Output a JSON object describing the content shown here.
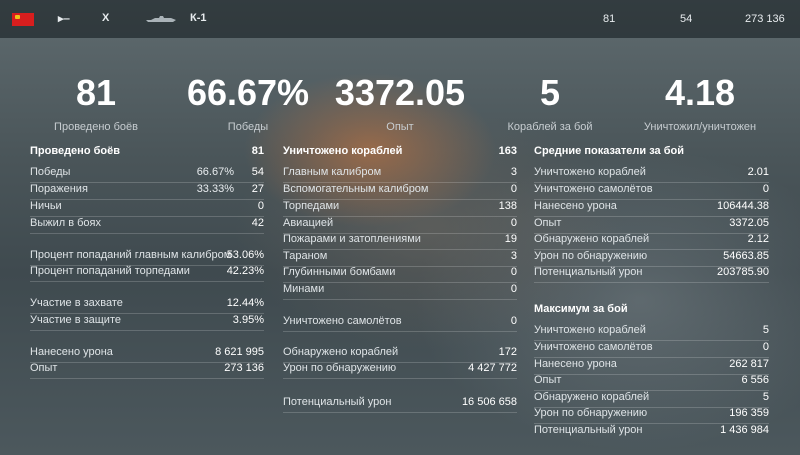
{
  "header": {
    "tier": "X",
    "ship_name": "К-1",
    "battles": "81",
    "wins": "54",
    "experience": "273 136",
    "flag_color": "#d81e1e",
    "class_icon": "submarine-class-icon"
  },
  "summary": [
    {
      "value": "81",
      "label": "Проведено боёв"
    },
    {
      "value": "66.67%",
      "label": "Победы"
    },
    {
      "value": "3372.05",
      "label": "Опыт"
    },
    {
      "value": "5",
      "label": "Кораблей за бой"
    },
    {
      "value": "4.18",
      "label": "Уничтожил/уничтожен"
    }
  ],
  "left": {
    "header": {
      "label": "Проведено боёв",
      "value": "81"
    },
    "wins": {
      "label": "Победы",
      "pct": "66.67%",
      "value": "54"
    },
    "losses": {
      "label": "Поражения",
      "pct": "33.33%",
      "value": "27"
    },
    "draws": {
      "label": "Ничьи",
      "value": "0"
    },
    "survived": {
      "label": "Выжил в боях",
      "value": "42"
    },
    "main_hit": {
      "label": "Процент попаданий главным калибром",
      "value": "53.06%"
    },
    "torp_hit": {
      "label": "Процент попаданий торпедами",
      "value": "42.23%"
    },
    "capture": {
      "label": "Участие в захвате",
      "value": "12.44%"
    },
    "defense": {
      "label": "Участие в защите",
      "value": "3.95%"
    },
    "damage": {
      "label": "Нанесено урона",
      "value": "8 621 995"
    },
    "exp": {
      "label": "Опыт",
      "value": "273 136"
    }
  },
  "middle": {
    "header": {
      "label": "Уничтожено кораблей",
      "value": "163"
    },
    "main": {
      "label": "Главным калибром",
      "value": "3"
    },
    "secondary": {
      "label": "Вспомогательным калибром",
      "value": "0"
    },
    "torpedoes": {
      "label": "Торпедами",
      "value": "138"
    },
    "aircraft": {
      "label": "Авиацией",
      "value": "0"
    },
    "fires": {
      "label": "Пожарами и затоплениями",
      "value": "19"
    },
    "ram": {
      "label": "Тараном",
      "value": "3"
    },
    "depth": {
      "label": "Глубинными бомбами",
      "value": "0"
    },
    "mines": {
      "label": "Минами",
      "value": "0"
    },
    "planes": {
      "label": "Уничтожено самолётов",
      "value": "0"
    },
    "spotted": {
      "label": "Обнаружено кораблей",
      "value": "172"
    },
    "spot_dmg": {
      "label": "Урон по обнаружению",
      "value": "4 427 772"
    },
    "potential": {
      "label": "Потенциальный урон",
      "value": "16 506 658"
    }
  },
  "right_avg": {
    "header": {
      "label": "Средние показатели за бой"
    },
    "ships": {
      "label": "Уничтожено кораблей",
      "value": "2.01"
    },
    "planes": {
      "label": "Уничтожено самолётов",
      "value": "0"
    },
    "damage": {
      "label": "Нанесено урона",
      "value": "106444.38"
    },
    "exp": {
      "label": "Опыт",
      "value": "3372.05"
    },
    "spotted": {
      "label": "Обнаружено кораблей",
      "value": "2.12"
    },
    "spot_dmg": {
      "label": "Урон по обнаружению",
      "value": "54663.85"
    },
    "potential": {
      "label": "Потенциальный урон",
      "value": "203785.90"
    }
  },
  "right_max": {
    "header": {
      "label": "Максимум за бой"
    },
    "ships": {
      "label": "Уничтожено кораблей",
      "value": "5"
    },
    "planes": {
      "label": "Уничтожено самолётов",
      "value": "0"
    },
    "damage": {
      "label": "Нанесено урона",
      "value": "262 817"
    },
    "exp": {
      "label": "Опыт",
      "value": "6 556"
    },
    "spotted": {
      "label": "Обнаружено кораблей",
      "value": "5"
    },
    "spot_dmg": {
      "label": "Урон по обнаружению",
      "value": "196 359"
    },
    "potential": {
      "label": "Потенциальный урон",
      "value": "1 436 984"
    }
  }
}
